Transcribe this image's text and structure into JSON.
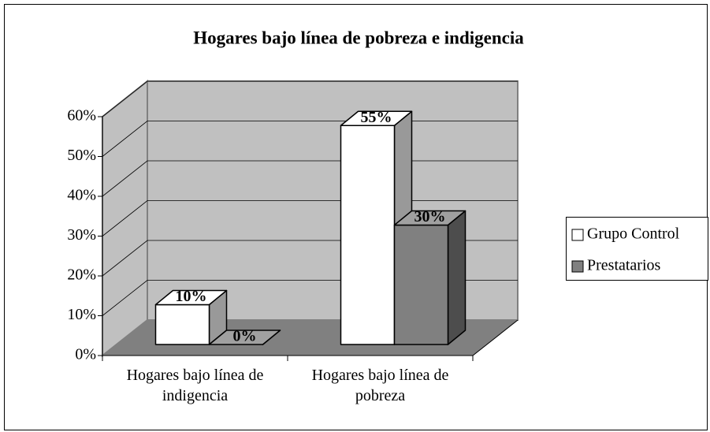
{
  "chart_data": {
    "type": "bar3d",
    "title": "Hogares bajo línea de pobreza e indigencia",
    "categories": [
      "Hogares bajo línea de indigencia",
      "Hogares bajo línea de pobreza"
    ],
    "series": [
      {
        "name": "Grupo Control",
        "color": "#ffffff",
        "values": [
          10,
          55
        ],
        "value_labels": [
          "10%",
          "55%"
        ]
      },
      {
        "name": "Prestatarios",
        "color": "#808080",
        "values": [
          0,
          30
        ],
        "value_labels": [
          "0%",
          "30%"
        ]
      }
    ],
    "ylim": [
      0,
      60
    ],
    "yticks": [
      {
        "value": 0,
        "label": "0%"
      },
      {
        "value": 10,
        "label": "10%"
      },
      {
        "value": 20,
        "label": "20%"
      },
      {
        "value": 30,
        "label": "30%"
      },
      {
        "value": 40,
        "label": "40%"
      },
      {
        "value": 50,
        "label": "50%"
      },
      {
        "value": 60,
        "label": "60%"
      }
    ],
    "grid": true,
    "legend": "right"
  }
}
